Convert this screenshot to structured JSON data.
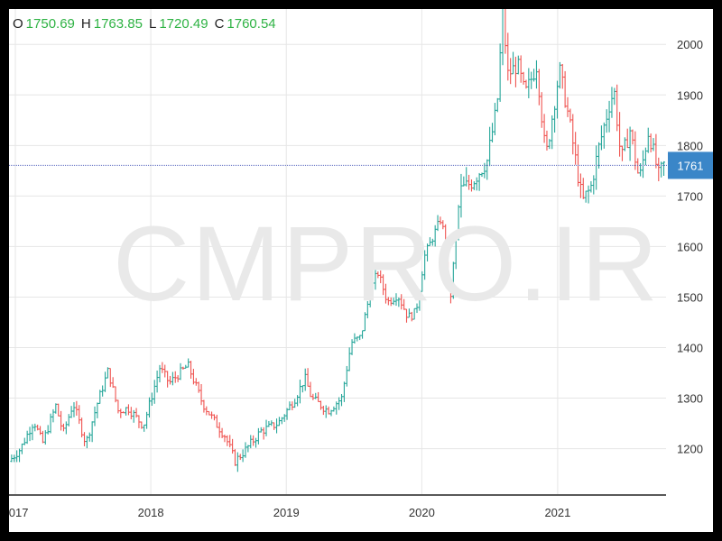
{
  "ohlc": {
    "open_key": "O",
    "open": "1750.69",
    "high_key": "H",
    "high": "1763.85",
    "low_key": "L",
    "low": "1720.49",
    "close_key": "C",
    "close": "1760.54"
  },
  "watermark": "CMPRO.IR",
  "colors": {
    "up": "#26a69a",
    "down": "#ef5350",
    "price_line": "#5c6bc0",
    "price_label_bg": "#3a86c8",
    "grid": "#e6e6e6",
    "ohlc_values": "#2fb344"
  },
  "chart_data": {
    "type": "ohlc",
    "bar_interval": "weekly",
    "x_ticks": [
      "2017",
      "2018",
      "2019",
      "2020",
      "2021"
    ],
    "y_ticks": [
      1200,
      1300,
      1400,
      1500,
      1600,
      1700,
      1800,
      1900,
      2000
    ],
    "ylim": [
      1110,
      2070
    ],
    "xlim": [
      "2016-12-15",
      "2021-10-20"
    ],
    "last_price": 1760.54,
    "last_price_label": "1761",
    "grid": true,
    "close_path": [
      [
        "2016-12-15",
        1175
      ],
      [
        "2017-01-15",
        1200
      ],
      [
        "2017-02-20",
        1255
      ],
      [
        "2017-03-15",
        1210
      ],
      [
        "2017-04-20",
        1285
      ],
      [
        "2017-05-10",
        1230
      ],
      [
        "2017-06-06",
        1290
      ],
      [
        "2017-07-10",
        1210
      ],
      [
        "2017-08-10",
        1290
      ],
      [
        "2017-09-08",
        1355
      ],
      [
        "2017-10-05",
        1275
      ],
      [
        "2017-11-01",
        1280
      ],
      [
        "2017-12-12",
        1245
      ],
      [
        "2018-01-25",
        1360
      ],
      [
        "2018-02-20",
        1330
      ],
      [
        "2018-04-11",
        1365
      ],
      [
        "2018-05-20",
        1290
      ],
      [
        "2018-06-25",
        1250
      ],
      [
        "2018-07-20",
        1225
      ],
      [
        "2018-08-16",
        1175
      ],
      [
        "2018-09-10",
        1195
      ],
      [
        "2018-10-25",
        1235
      ],
      [
        "2018-12-10",
        1250
      ],
      [
        "2019-01-25",
        1300
      ],
      [
        "2019-02-20",
        1340
      ],
      [
        "2019-03-10",
        1300
      ],
      [
        "2019-04-23",
        1275
      ],
      [
        "2019-05-30",
        1300
      ],
      [
        "2019-06-25",
        1410
      ],
      [
        "2019-07-20",
        1420
      ],
      [
        "2019-08-15",
        1510
      ],
      [
        "2019-09-04",
        1550
      ],
      [
        "2019-10-01",
        1490
      ],
      [
        "2019-10-28",
        1505
      ],
      [
        "2019-11-25",
        1460
      ],
      [
        "2019-12-16",
        1470
      ],
      [
        "2020-01-08",
        1580
      ],
      [
        "2020-02-24",
        1660
      ],
      [
        "2020-03-16",
        1480
      ],
      [
        "2020-04-13",
        1710
      ],
      [
        "2020-05-18",
        1730
      ],
      [
        "2020-06-25",
        1770
      ],
      [
        "2020-07-22",
        1880
      ],
      [
        "2020-08-06",
        2065
      ],
      [
        "2020-08-20",
        1940
      ],
      [
        "2020-09-15",
        1960
      ],
      [
        "2020-10-05",
        1900
      ],
      [
        "2020-11-06",
        1960
      ],
      [
        "2020-11-30",
        1775
      ],
      [
        "2021-01-06",
        1950
      ],
      [
        "2021-02-01",
        1850
      ],
      [
        "2021-03-08",
        1690
      ],
      [
        "2021-03-31",
        1715
      ],
      [
        "2021-04-20",
        1790
      ],
      [
        "2021-05-20",
        1880
      ],
      [
        "2021-06-02",
        1910
      ],
      [
        "2021-06-21",
        1770
      ],
      [
        "2021-07-15",
        1830
      ],
      [
        "2021-08-09",
        1730
      ],
      [
        "2021-09-03",
        1830
      ],
      [
        "2021-09-30",
        1740
      ],
      [
        "2021-10-14",
        1761
      ]
    ]
  }
}
